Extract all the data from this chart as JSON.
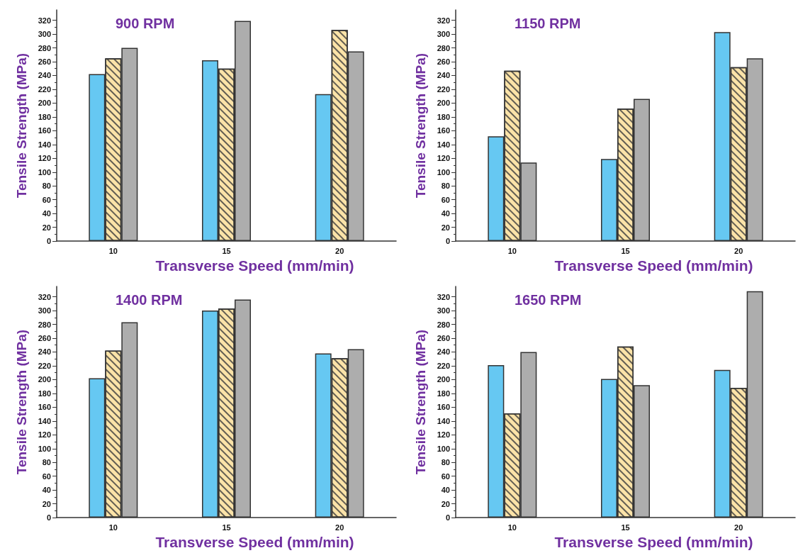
{
  "chart_data": [
    {
      "type": "bar",
      "title": "900 RPM",
      "xlabel": "Transverse Speed (mm/min)",
      "ylabel": "Tensile Strength (MPa)",
      "categories": [
        "10",
        "15",
        "20"
      ],
      "series": [
        {
          "color": "#66c8f2",
          "values": [
            242,
            262,
            213
          ]
        },
        {
          "color": "#fbe3a8",
          "values": [
            265,
            250,
            306
          ]
        },
        {
          "color": "#adadad",
          "values": [
            280,
            319,
            275
          ]
        }
      ],
      "ylim": [
        0,
        335
      ],
      "yticks": [
        0,
        20,
        40,
        60,
        80,
        100,
        120,
        140,
        160,
        180,
        200,
        220,
        240,
        260,
        280,
        300,
        320
      ],
      "grid": false
    },
    {
      "type": "bar",
      "title": "1150 RPM",
      "xlabel": "Transverse Speed (mm/min)",
      "ylabel": "Tensile Strength (MPa)",
      "categories": [
        "10",
        "15",
        "20"
      ],
      "series": [
        {
          "color": "#66c8f2",
          "values": [
            152,
            119,
            303
          ]
        },
        {
          "color": "#fbe3a8",
          "values": [
            247,
            192,
            252
          ]
        },
        {
          "color": "#adadad",
          "values": [
            114,
            206,
            265
          ]
        }
      ],
      "ylim": [
        0,
        335
      ],
      "yticks": [
        0,
        20,
        40,
        60,
        80,
        100,
        120,
        140,
        160,
        180,
        200,
        220,
        240,
        260,
        280,
        300,
        320
      ],
      "grid": false
    },
    {
      "type": "bar",
      "title": "1400 RPM",
      "xlabel": "Transverse Speed (mm/min)",
      "ylabel": "Tensile Strength (MPa)",
      "categories": [
        "10",
        "15",
        "20"
      ],
      "series": [
        {
          "color": "#66c8f2",
          "values": [
            202,
            300,
            238
          ]
        },
        {
          "color": "#fbe3a8",
          "values": [
            242,
            303,
            231
          ]
        },
        {
          "color": "#adadad",
          "values": [
            283,
            316,
            244
          ]
        }
      ],
      "ylim": [
        0,
        335
      ],
      "yticks": [
        0,
        20,
        40,
        60,
        80,
        100,
        120,
        140,
        160,
        180,
        200,
        220,
        240,
        260,
        280,
        300,
        320
      ],
      "grid": false
    },
    {
      "type": "bar",
      "title": "1650 RPM",
      "xlabel": "Transverse Speed (mm/min)",
      "ylabel": "Tensile Strength (MPa)",
      "categories": [
        "10",
        "15",
        "20"
      ],
      "series": [
        {
          "color": "#66c8f2",
          "values": [
            221,
            201,
            214
          ]
        },
        {
          "color": "#fbe3a8",
          "values": [
            151,
            248,
            188
          ]
        },
        {
          "color": "#adadad",
          "values": [
            240,
            192,
            328
          ]
        }
      ],
      "ylim": [
        0,
        335
      ],
      "yticks": [
        0,
        20,
        40,
        60,
        80,
        100,
        120,
        140,
        160,
        180,
        200,
        220,
        240,
        260,
        280,
        300,
        320
      ],
      "grid": false
    }
  ]
}
